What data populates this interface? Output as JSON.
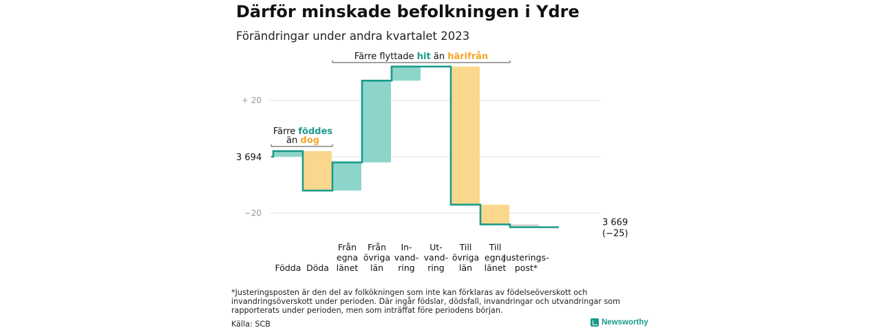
{
  "title": "Därför minskade befolkningen i Ydre",
  "subtitle": "Förändringar under andra kvartalet 2023",
  "chart_data": {
    "type": "waterfall",
    "start_label": "3 694",
    "start_value": 3694,
    "end_value": 3669,
    "end_label": "3 669",
    "end_change_label": "(−25)",
    "y_ticks": [
      {
        "value": 20,
        "label": "+  20"
      },
      {
        "value": -20,
        "label": "−20"
      }
    ],
    "steps": [
      {
        "label": "Födda",
        "value": 2,
        "kind": "positive"
      },
      {
        "label": "Döda",
        "value": -14,
        "kind": "negative"
      },
      {
        "label": "Från egna länet",
        "value": 10,
        "kind": "positive"
      },
      {
        "label": "Från övriga län",
        "value": 29,
        "kind": "positive"
      },
      {
        "label": "In- vand- ring",
        "value": 5,
        "kind": "positive"
      },
      {
        "label": "Ut- vand- ring",
        "value": 0,
        "kind": "negative"
      },
      {
        "label": "Till övriga län",
        "value": -49,
        "kind": "negative"
      },
      {
        "label": "Till egna länet",
        "value": -7,
        "kind": "negative"
      },
      {
        "label": "Justerings- post*",
        "value": -1,
        "kind": "adjustment"
      }
    ],
    "annotations": {
      "born": {
        "line1": "Färre ",
        "line1_hl": "föddes",
        "line2": "än ",
        "line2_hl": "dog"
      },
      "moved": {
        "prefix": "Färre flyttade ",
        "hit": "hit",
        "mid": " än ",
        "harifran": "härifrån"
      }
    },
    "colors": {
      "line": "#1a9b8a",
      "positive": "#8dd5cb",
      "negative": "#fbd78d",
      "adjustment": "#d2d2d2",
      "grid": "#e2e2e2",
      "hit": "#1a9b8a",
      "harifran": "#f4a52a"
    }
  },
  "footnote": "*Justeringsposten är den del av folkökningen som inte kan förklaras av födelseöverskott och invandringsöverskott under perioden. Där ingår födslar, dödsfall, invandringar och utvandringar som rapporterats under perioden, men som inträffat före periodens början.",
  "source": "Källa: SCB",
  "brand": "Newsworthy"
}
